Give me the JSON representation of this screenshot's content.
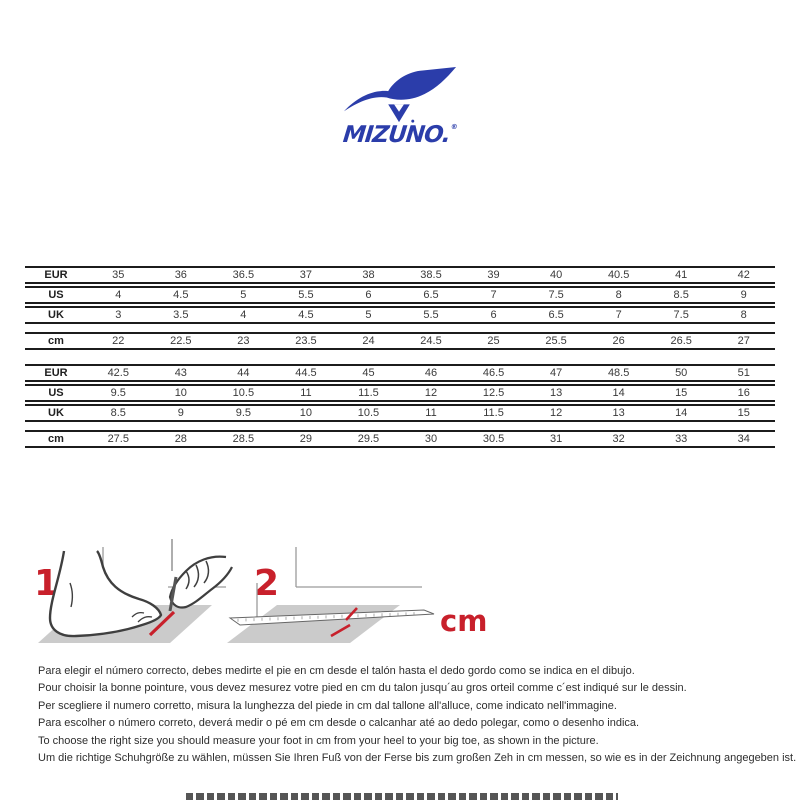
{
  "logo": {
    "brand": "Mizuno",
    "wordmark": "MIZUNO.",
    "registered": "®",
    "color": "#2b3daa"
  },
  "size_chart": {
    "upper": {
      "rows": [
        {
          "label": "EUR",
          "values": [
            "35",
            "36",
            "36.5",
            "37",
            "38",
            "38.5",
            "39",
            "40",
            "40.5",
            "41",
            "42"
          ]
        },
        {
          "label": "US",
          "values": [
            "4",
            "4.5",
            "5",
            "5.5",
            "6",
            "6.5",
            "7",
            "7.5",
            "8",
            "8.5",
            "9"
          ]
        },
        {
          "label": "UK",
          "values": [
            "3",
            "3.5",
            "4",
            "4.5",
            "5",
            "5.5",
            "6",
            "6.5",
            "7",
            "7.5",
            "8"
          ]
        }
      ],
      "cm_row": {
        "label": "cm",
        "values": [
          "22",
          "22.5",
          "23",
          "23.5",
          "24",
          "24.5",
          "25",
          "25.5",
          "26",
          "26.5",
          "27"
        ]
      }
    },
    "lower": {
      "rows": [
        {
          "label": "EUR",
          "values": [
            "42.5",
            "43",
            "44",
            "44.5",
            "45",
            "46",
            "46.5",
            "47",
            "48.5",
            "50",
            "51"
          ]
        },
        {
          "label": "US",
          "values": [
            "9.5",
            "10",
            "10.5",
            "11",
            "11.5",
            "12",
            "12.5",
            "13",
            "14",
            "15",
            "16"
          ]
        },
        {
          "label": "UK",
          "values": [
            "8.5",
            "9",
            "9.5",
            "10",
            "10.5",
            "11",
            "11.5",
            "12",
            "13",
            "14",
            "15"
          ]
        }
      ],
      "cm_row": {
        "label": "cm",
        "values": [
          "27.5",
          "28",
          "28.5",
          "29",
          "29.5",
          "30",
          "30.5",
          "31",
          "32",
          "33",
          "34"
        ]
      }
    }
  },
  "illustrations": {
    "step1_number": "1",
    "step2_number": "2",
    "cm_label": "cm",
    "accent_color": "#c8202b",
    "sheet_color": "#cbcbcb",
    "outline_color": "#3f3f3f"
  },
  "instructions": [
    "Para elegir el número correcto, debes medirte el pie en cm desde el talón hasta el dedo gordo como se indica en el dibujo.",
    "Pour choisir la bonne pointure, vous devez mesurez votre pied en cm du talon jusqu´au gros orteil comme c´est indiqué sur le dessin.",
    "Per scegliere il numero corretto, misura la lunghezza del piede in cm dal tallone all'alluce, come indicato nell'immagine.",
    "Para escolher o número correto, deverá medir o pé em cm desde o calcanhar até ao dedo polegar, como o desenho indica.",
    "To choose the right size you should measure your foot in cm from your heel to your big toe, as shown in the picture.",
    "Um die richtige Schuhgröße zu wählen, müssen Sie Ihren Fuß von der Ferse bis zum großen Zeh in cm messen, so wie es in der Zeichnung angegeben ist."
  ]
}
